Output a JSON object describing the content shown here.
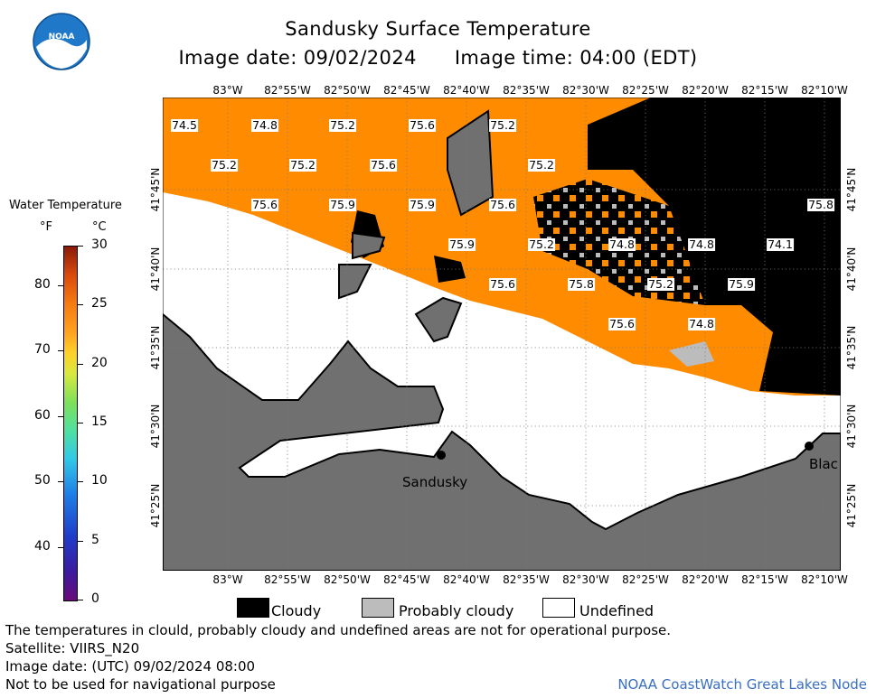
{
  "header": {
    "title": "Sandusky Surface Temperature",
    "image_date": "Image date: 09/02/2024",
    "image_time": "Image time: 04:00 (EDT)"
  },
  "logo": {
    "text": "NOAA",
    "icon": "noaa-logo-icon",
    "colors": {
      "outer": "#1f78c8",
      "inner": "#ffffff"
    }
  },
  "colorbar": {
    "title": "Water Temperature",
    "unit_f": "°F",
    "unit_c": "°C",
    "ticks_f": [
      "80",
      "70",
      "60",
      "50",
      "40"
    ],
    "ticks_f_values": [
      80,
      70,
      60,
      50,
      40
    ],
    "ticks_c": [
      "30",
      "25",
      "20",
      "15",
      "10",
      "5",
      "0"
    ],
    "ticks_c_values": [
      30,
      25,
      20,
      15,
      10,
      5,
      0
    ],
    "range_c": [
      0,
      30
    ]
  },
  "map": {
    "lon_labels": [
      "83°W",
      "82°55'W",
      "82°50'W",
      "82°45'W",
      "82°40'W",
      "82°35'W",
      "82°30'W",
      "82°25'W",
      "82°20'W",
      "82°15'W",
      "82°10'W"
    ],
    "lat_labels": [
      "41°45'N",
      "41°40'N",
      "41°35'N",
      "41°30'N",
      "41°25'N"
    ],
    "colors": {
      "water_orange": "#ff8c00",
      "land": "#707070",
      "cloudy": "#000000",
      "probably_cloudy": "#bcbcbc",
      "undefined": "#ffffff"
    },
    "temperature_labels": [
      "74.5",
      "74.8",
      "75.2",
      "75.6",
      "75.2",
      "75.2",
      "75.2",
      "75.6",
      "75.2",
      "75.6",
      "75.9",
      "75.9",
      "75.6",
      "75.9",
      "75.2",
      "74.8",
      "74.8",
      "74.1",
      "75.6",
      "75.8",
      "75.2",
      "75.9",
      "75.6",
      "74.8",
      "75.8"
    ],
    "cities": [
      "Sandusky",
      "Blac"
    ]
  },
  "legend": {
    "cloudy": "Cloudy",
    "probably_cloudy": "Probably cloudy",
    "undefined": "Undefined"
  },
  "footer": {
    "line1": "The temperatures in clould, probably cloudy and undefined areas are not for operational purpose.",
    "line2": "Satellite: VIIRS_N20",
    "line3": "Image date: (UTC) 09/02/2024  08:00",
    "line4": "Not to be used for navigational purpose",
    "credit": "NOAA CoastWatch Great Lakes Node"
  }
}
